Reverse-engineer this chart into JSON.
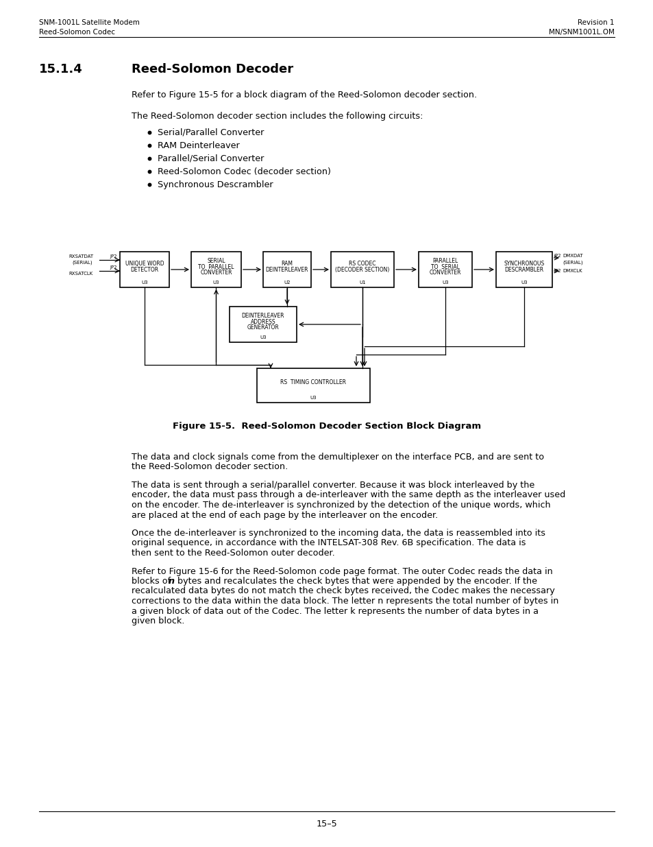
{
  "header_left_line1": "SNM-1001L Satellite Modem",
  "header_left_line2": "Reed-Solomon Codec",
  "header_right_line1": "Revision 1",
  "header_right_line2": "MN/SNM1001L.OM",
  "section_number": "15.1.4",
  "section_title": "Reed-Solomon Decoder",
  "para1": "Refer to Figure 15-5 for a block diagram of the Reed-Solomon decoder section.",
  "para2": "The Reed-Solomon decoder section includes the following circuits:",
  "bullets": [
    "Serial/Parallel Converter",
    "RAM Deinterleaver",
    "Parallel/Serial Converter",
    "Reed-Solomon Codec (decoder section)",
    "Synchronous Descrambler"
  ],
  "figure_caption": "Figure 15-5.  Reed-Solomon Decoder Section Block Diagram",
  "para3": "The data and clock signals come from the demultiplexer on the interface PCB, and are sent to\nthe Reed-Solomon decoder section.",
  "para4": "The data is sent through a serial/parallel converter. Because it was block interleaved by the\nencoder, the data must pass through a de-interleaver with the same depth as the interleaver used\non the encoder. The de-interleaver is synchronized by the detection of the unique words, which\nare placed at the end of each page by the interleaver on the encoder.",
  "para5": "Once the de-interleaver is synchronized to the incoming data, the data is reassembled into its\noriginal sequence, in accordance with the INTELSAT-308 Rev. 6B specification. The data is\nthen sent to the Reed-Solomon outer decoder.",
  "para6_pre": "Refer to Figure 15-6 for the Reed-Solomon code page format. The outer Codec reads the data in\nblocks of ",
  "para6_bold": "n",
  "para6_mid": " bytes and recalculates the check bytes that were appended by the encoder. If the\nrecalculated data bytes do not match the check bytes received, the Codec makes the necessary\ncorrections to the data within the data block. The letter n represents the total number of bytes in\na given block of data out of the Codec. The letter k represents the number of data bytes in a\ngiven block.",
  "footer_text": "15–5",
  "bg_color": "#ffffff",
  "text_color": "#000000"
}
